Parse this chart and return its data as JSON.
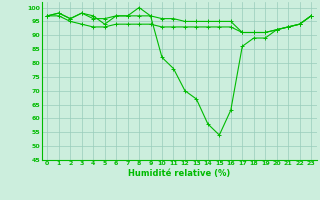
{
  "x": [
    0,
    1,
    2,
    3,
    4,
    5,
    6,
    7,
    8,
    9,
    10,
    11,
    12,
    13,
    14,
    15,
    16,
    17,
    18,
    19,
    20,
    21,
    22,
    23
  ],
  "y_main": [
    97,
    98,
    96,
    98,
    97,
    94,
    97,
    97,
    100,
    97,
    82,
    78,
    70,
    67,
    58,
    54,
    63,
    86,
    89,
    89,
    92,
    93,
    94,
    97
  ],
  "y_upper": [
    97,
    98,
    96,
    98,
    96,
    96,
    97,
    97,
    97,
    97,
    96,
    96,
    95,
    95,
    95,
    95,
    95,
    91,
    91,
    91,
    92,
    93,
    94,
    97
  ],
  "y_lower": [
    97,
    97,
    95,
    94,
    93,
    93,
    94,
    94,
    94,
    94,
    93,
    93,
    93,
    93,
    93,
    93,
    93,
    91,
    91,
    91,
    92,
    93,
    94,
    97
  ],
  "line_color": "#00bb00",
  "bg_color": "#cceedd",
  "grid_color": "#99ccbb",
  "xlabel": "Humidité relative (%)",
  "ylim": [
    45,
    102
  ],
  "xlim": [
    -0.5,
    23.5
  ],
  "yticks": [
    45,
    50,
    55,
    60,
    65,
    70,
    75,
    80,
    85,
    90,
    95,
    100
  ],
  "xticks": [
    0,
    1,
    2,
    3,
    4,
    5,
    6,
    7,
    8,
    9,
    10,
    11,
    12,
    13,
    14,
    15,
    16,
    17,
    18,
    19,
    20,
    21,
    22,
    23
  ],
  "tick_fontsize": 4.5,
  "xlabel_fontsize": 6.0
}
